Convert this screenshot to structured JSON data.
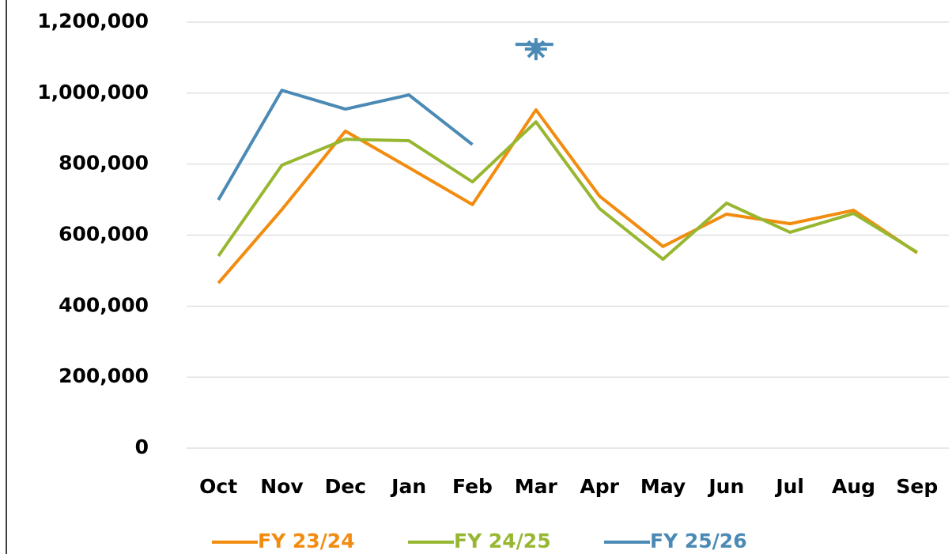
{
  "chart_data": {
    "type": "line",
    "categories": [
      "Oct",
      "Nov",
      "Dec",
      "Jan",
      "Feb",
      "Mar",
      "Apr",
      "May",
      "Jun",
      "Jul",
      "Aug",
      "Sep"
    ],
    "series": [
      {
        "name": "FY 23/24",
        "color": "#f28c0f",
        "values": [
          465000,
          672000,
          893000,
          790000,
          686000,
          953000,
          710000,
          568000,
          659000,
          632000,
          670000,
          550000
        ]
      },
      {
        "name": "FY 24/25",
        "color": "#97b731",
        "values": [
          541000,
          797000,
          870000,
          866000,
          750000,
          919000,
          675000,
          532000,
          690000,
          608000,
          661000,
          552000
        ]
      },
      {
        "name": "FY 25/26",
        "color": "#4a8ab5",
        "values": [
          699000,
          1008000,
          955000,
          995000,
          855000,
          null,
          null,
          null,
          null,
          null,
          null,
          null
        ],
        "marker": {
          "category": "Mar",
          "value": 1124000
        }
      }
    ],
    "ylim": [
      0,
      1200000
    ],
    "yticks": [
      0,
      {
        "value": 200000,
        "label": "200,000"
      },
      {
        "value": 400000,
        "label": "400,000"
      },
      {
        "value": 600000,
        "label": "600,000"
      },
      {
        "value": 800000,
        "label": "800,000"
      },
      {
        "value": 1000000,
        "label": "1,000,000"
      },
      {
        "value": 1200000,
        "label": "1,200,000"
      }
    ],
    "grid": true,
    "legend": "bottom"
  }
}
